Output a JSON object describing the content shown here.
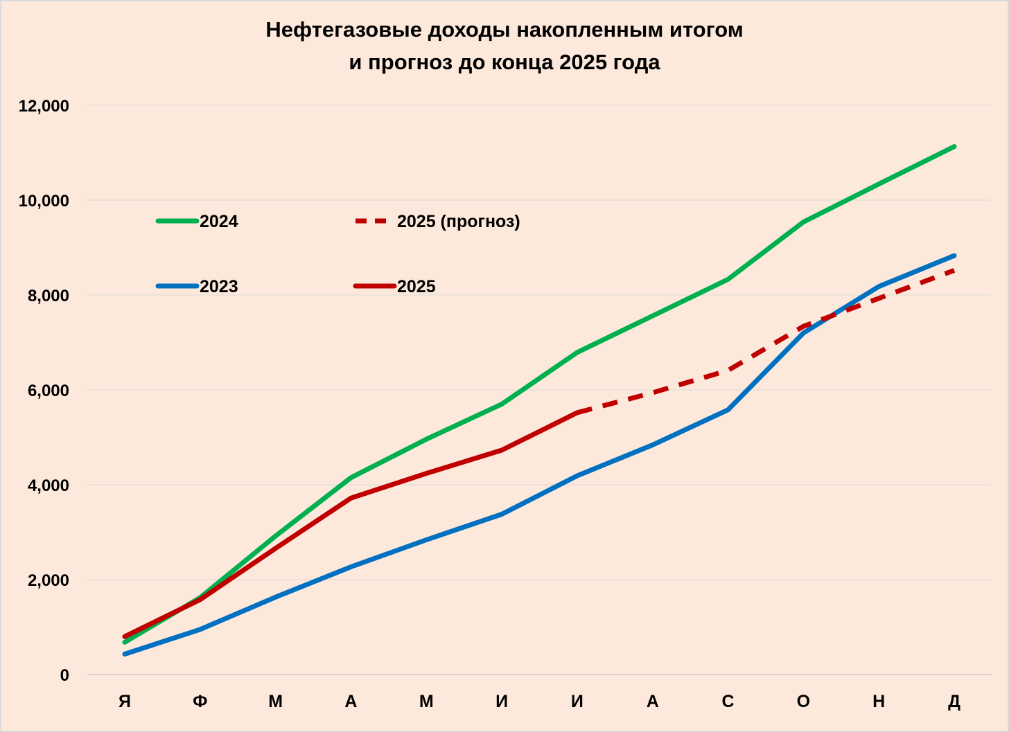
{
  "chart_data": {
    "type": "line",
    "title": [
      "Нефтегазовые доходы накопленным итогом",
      "и прогноз до конца 2025 года"
    ],
    "xlabel": "",
    "ylabel": "",
    "categories": [
      "Я",
      "Ф",
      "М",
      "А",
      "М",
      "И",
      "И",
      "А",
      "С",
      "О",
      "Н",
      "Д"
    ],
    "ylim": [
      0,
      12000
    ],
    "yticks": [
      0,
      2000,
      4000,
      6000,
      8000,
      10000,
      12000
    ],
    "ytick_labels": [
      "0",
      "2,000",
      "4,000",
      "6,000",
      "8,000",
      "10,000",
      "12,000"
    ],
    "grid": true,
    "legend_placement": "upper-left inside plot",
    "series": [
      {
        "name": "2024",
        "color": "#00b050",
        "style": "solid",
        "values": [
          680,
          1620,
          2920,
          4150,
          4960,
          5700,
          6790,
          7560,
          8330,
          9540,
          10340,
          11130
        ]
      },
      {
        "name": "2023",
        "color": "#0070c0",
        "style": "solid",
        "values": [
          430,
          950,
          1630,
          2270,
          2840,
          3380,
          4190,
          4840,
          5580,
          7200,
          8180,
          8830
        ]
      },
      {
        "name": "2025",
        "color": "#c00000",
        "style": "solid",
        "values": [
          800,
          1580,
          2660,
          3720,
          4240,
          4730,
          5520,
          null,
          null,
          null,
          null,
          null
        ]
      },
      {
        "name": "2025 (прогноз)",
        "color": "#c00000",
        "style": "dashed",
        "values": [
          null,
          null,
          null,
          null,
          null,
          null,
          5520,
          5940,
          6410,
          7340,
          7930,
          8520
        ]
      }
    ],
    "legend_order": [
      "2024",
      "2025 (прогноз)",
      "2023",
      "2025"
    ]
  }
}
